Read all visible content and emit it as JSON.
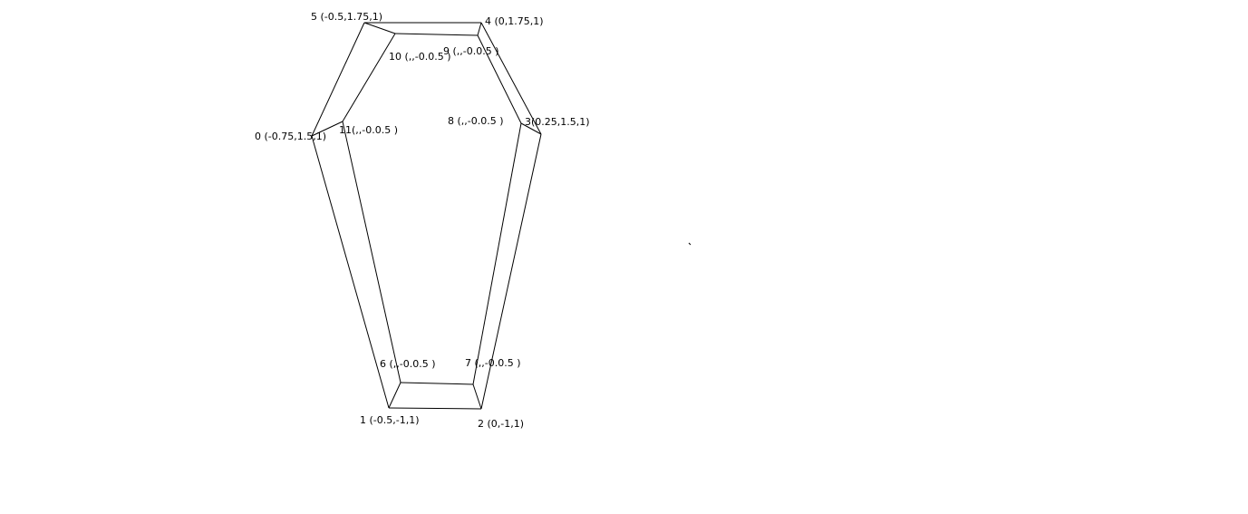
{
  "diagram": {
    "vertices": [
      {
        "id": 0,
        "label": "0 (-0.75,1.5,1)"
      },
      {
        "id": 1,
        "label": "1 (-0.5,-1,1)"
      },
      {
        "id": 2,
        "label": "2 (0,-1,1)"
      },
      {
        "id": 3,
        "label": "3(0.25,1.5,1)"
      },
      {
        "id": 4,
        "label": "4 (0,1.75,1)"
      },
      {
        "id": 5,
        "label": "5 (-0.5,1.75,1)"
      },
      {
        "id": 6,
        "label": "6 (,,-0.0.5  )"
      },
      {
        "id": 7,
        "label": "7 (,,-0.0.5  )"
      },
      {
        "id": 8,
        "label": "8 (,,-0.0.5  )"
      },
      {
        "id": 9,
        "label": "9 (,,-0.0.5  )"
      },
      {
        "id": 10,
        "label": "10 (,,-0.0.5  )"
      },
      {
        "id": 11,
        "label": "11(,,-0.0.5  )"
      }
    ],
    "edges": [
      [
        0,
        1
      ],
      [
        1,
        2
      ],
      [
        2,
        3
      ],
      [
        3,
        4
      ],
      [
        4,
        5
      ],
      [
        5,
        0
      ],
      [
        6,
        7
      ],
      [
        7,
        8
      ],
      [
        8,
        9
      ],
      [
        9,
        10
      ],
      [
        10,
        11
      ],
      [
        11,
        6
      ],
      [
        0,
        11
      ],
      [
        1,
        6
      ],
      [
        2,
        7
      ],
      [
        3,
        8
      ],
      [
        4,
        9
      ],
      [
        5,
        10
      ]
    ],
    "line_color": "#000000",
    "background": "#ffffff"
  }
}
